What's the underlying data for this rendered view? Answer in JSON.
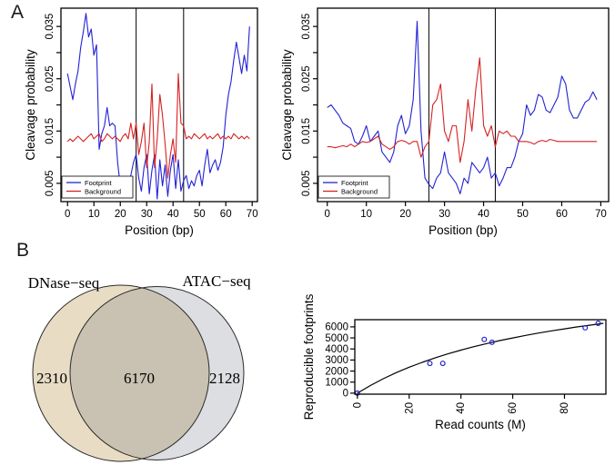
{
  "panels": {
    "a_label": "A",
    "b_label": "B"
  },
  "colors": {
    "footprint": "#2222d6",
    "background": "#d62222",
    "curve": "#000000",
    "point": "#2222cc"
  },
  "chart_data": [
    {
      "id": "panel_a_left",
      "type": "line",
      "xlabel": "Position (bp)",
      "ylabel": "Cleavage probability",
      "xlim": [
        -2.5,
        72
      ],
      "ylim": [
        0.0015,
        0.0385
      ],
      "xticks": [
        0,
        10,
        20,
        30,
        40,
        50,
        60,
        70
      ],
      "yticks": [
        0.005,
        0.01,
        0.015,
        0.02,
        0.025,
        0.03,
        0.035
      ],
      "ytick_labels": [
        "0.005",
        "",
        "0.015",
        "",
        "0.025",
        "",
        "0.035"
      ],
      "vlines": [
        26,
        44
      ],
      "legend": {
        "position": "bottom-left",
        "entries": [
          {
            "label": "Footprint",
            "color": "#2222d6"
          },
          {
            "label": "Background",
            "color": "#d62222"
          }
        ]
      },
      "series": [
        {
          "name": "Footprint",
          "color": "#2222d6",
          "values": [
            0.026,
            0.0235,
            0.021,
            0.024,
            0.0265,
            0.031,
            0.034,
            0.0375,
            0.033,
            0.0345,
            0.0295,
            0.0315,
            0.0115,
            0.0145,
            0.016,
            0.0195,
            0.016,
            0.0165,
            0.016,
            0.009,
            0.0045,
            0.004,
            0.0055,
            0.004,
            0.0065,
            0.009,
            0.0105,
            0.006,
            0.0035,
            0.008,
            0.0105,
            0.003,
            0.0075,
            0.0105,
            0.002,
            0.0095,
            0.0045,
            0.0085,
            0.0025,
            0.0075,
            0.0105,
            0.004,
            0.0095,
            0.0035,
            0.0055,
            0.0065,
            0.004,
            0.0055,
            0.0045,
            0.0065,
            0.0075,
            0.0045,
            0.0085,
            0.0115,
            0.007,
            0.0085,
            0.0095,
            0.0075,
            0.009,
            0.012,
            0.018,
            0.022,
            0.0245,
            0.0285,
            0.032,
            0.029,
            0.026,
            0.0295,
            0.0265,
            0.035
          ]
        },
        {
          "name": "Background",
          "color": "#d62222",
          "values": [
            0.013,
            0.0135,
            0.013,
            0.0135,
            0.014,
            0.0135,
            0.013,
            0.0135,
            0.014,
            0.0145,
            0.0135,
            0.014,
            0.0145,
            0.013,
            0.0135,
            0.0145,
            0.014,
            0.0135,
            0.014,
            0.0135,
            0.013,
            0.014,
            0.0145,
            0.0135,
            0.0165,
            0.0135,
            0.0165,
            0.0105,
            0.013,
            0.0165,
            0.008,
            0.013,
            0.024,
            0.008,
            0.0135,
            0.022,
            0.018,
            0.0125,
            0.006,
            0.0105,
            0.0135,
            0.009,
            0.026,
            0.0165,
            0.016,
            0.0135,
            0.014,
            0.0135,
            0.0145,
            0.014,
            0.0135,
            0.014,
            0.0145,
            0.0135,
            0.014,
            0.0135,
            0.014,
            0.0145,
            0.0135,
            0.014,
            0.0135,
            0.014,
            0.0135,
            0.0145,
            0.014,
            0.0135,
            0.014,
            0.0135,
            0.014,
            0.0135
          ]
        }
      ]
    },
    {
      "id": "panel_a_right",
      "type": "line",
      "xlabel": "Position (bp)",
      "ylabel": "Cleavage probability",
      "xlim": [
        -2.5,
        72
      ],
      "ylim": [
        0.0015,
        0.0385
      ],
      "xticks": [
        0,
        10,
        20,
        30,
        40,
        50,
        60,
        70
      ],
      "yticks": [
        0.005,
        0.01,
        0.015,
        0.02,
        0.025,
        0.03,
        0.035
      ],
      "ytick_labels": [
        "0.005",
        "",
        "0.015",
        "",
        "0.025",
        "",
        "0.035"
      ],
      "vlines": [
        26,
        43
      ],
      "legend": {
        "position": "bottom-left",
        "entries": [
          {
            "label": "Footprint",
            "color": "#2222d6"
          },
          {
            "label": "Background",
            "color": "#d62222"
          }
        ]
      },
      "series": [
        {
          "name": "Footprint",
          "color": "#2222d6",
          "values": [
            0.0195,
            0.02,
            0.019,
            0.018,
            0.0165,
            0.016,
            0.0155,
            0.013,
            0.0125,
            0.014,
            0.016,
            0.013,
            0.014,
            0.015,
            0.011,
            0.01,
            0.009,
            0.011,
            0.016,
            0.018,
            0.0145,
            0.016,
            0.021,
            0.036,
            0.015,
            0.006,
            0.0048,
            0.004,
            0.006,
            0.007,
            0.011,
            0.007,
            0.006,
            0.005,
            0.003,
            0.006,
            0.005,
            0.009,
            0.008,
            0.007,
            0.008,
            0.01,
            0.006,
            0.007,
            0.0045,
            0.006,
            0.008,
            0.008,
            0.01,
            0.013,
            0.0145,
            0.02,
            0.018,
            0.019,
            0.022,
            0.0215,
            0.019,
            0.0185,
            0.02,
            0.0215,
            0.0255,
            0.024,
            0.019,
            0.0175,
            0.0175,
            0.019,
            0.0205,
            0.021,
            0.0225,
            0.021
          ]
        },
        {
          "name": "Background",
          "color": "#d62222",
          "values": [
            0.012,
            0.012,
            0.0118,
            0.012,
            0.0122,
            0.012,
            0.0125,
            0.012,
            0.0125,
            0.013,
            0.0128,
            0.013,
            0.0135,
            0.014,
            0.0125,
            0.012,
            0.0115,
            0.012,
            0.013,
            0.0132,
            0.013,
            0.0125,
            0.013,
            0.013,
            0.01,
            0.012,
            0.013,
            0.02,
            0.021,
            0.024,
            0.015,
            0.013,
            0.016,
            0.016,
            0.009,
            0.013,
            0.021,
            0.015,
            0.023,
            0.029,
            0.016,
            0.014,
            0.016,
            0.012,
            0.015,
            0.0145,
            0.015,
            0.014,
            0.014,
            0.013,
            0.013,
            0.013,
            0.0128,
            0.0125,
            0.013,
            0.0132,
            0.013,
            0.0134,
            0.0132,
            0.013,
            0.013,
            0.013,
            0.013,
            0.013,
            0.013,
            0.013,
            0.013,
            0.013,
            0.013,
            0.013
          ]
        }
      ]
    },
    {
      "id": "panel_b_venn",
      "type": "venn",
      "sets": [
        {
          "label": "DNase−seq",
          "unique": "2310",
          "color": "#e8dcc4"
        },
        {
          "label": "ATAC−seq",
          "unique": "2128",
          "color": "#dcdee1"
        }
      ],
      "overlap": "6170",
      "overlap_color": "#c9c1b1",
      "outline_color": "#2b2b2b"
    },
    {
      "id": "panel_b_saturation",
      "type": "scatter",
      "xlabel": "Read counts (M)",
      "ylabel": "Reproducible footprints",
      "xlim": [
        -1,
        96
      ],
      "ylim": [
        -90,
        6650
      ],
      "xticks": [
        0,
        20,
        40,
        60,
        80
      ],
      "yticks": [
        0,
        1000,
        2000,
        3000,
        4000,
        5000,
        6000
      ],
      "points": [
        [
          0,
          0
        ],
        [
          28,
          2700
        ],
        [
          33,
          2700
        ],
        [
          49,
          4870
        ],
        [
          52,
          4600
        ],
        [
          88,
          5920
        ],
        [
          93,
          6320
        ]
      ],
      "fit_curve": {
        "x": [
          0,
          5,
          10,
          15,
          20,
          25,
          30,
          35,
          40,
          45,
          50,
          55,
          60,
          65,
          70,
          75,
          80,
          85,
          90,
          95
        ],
        "y": [
          0,
          690,
          1310,
          1860,
          2350,
          2790,
          3190,
          3560,
          3900,
          4210,
          4490,
          4760,
          5000,
          5230,
          5440,
          5640,
          5820,
          6000,
          6160,
          6320
        ]
      },
      "point_color": "#2222cc",
      "curve_color": "#000000"
    }
  ]
}
